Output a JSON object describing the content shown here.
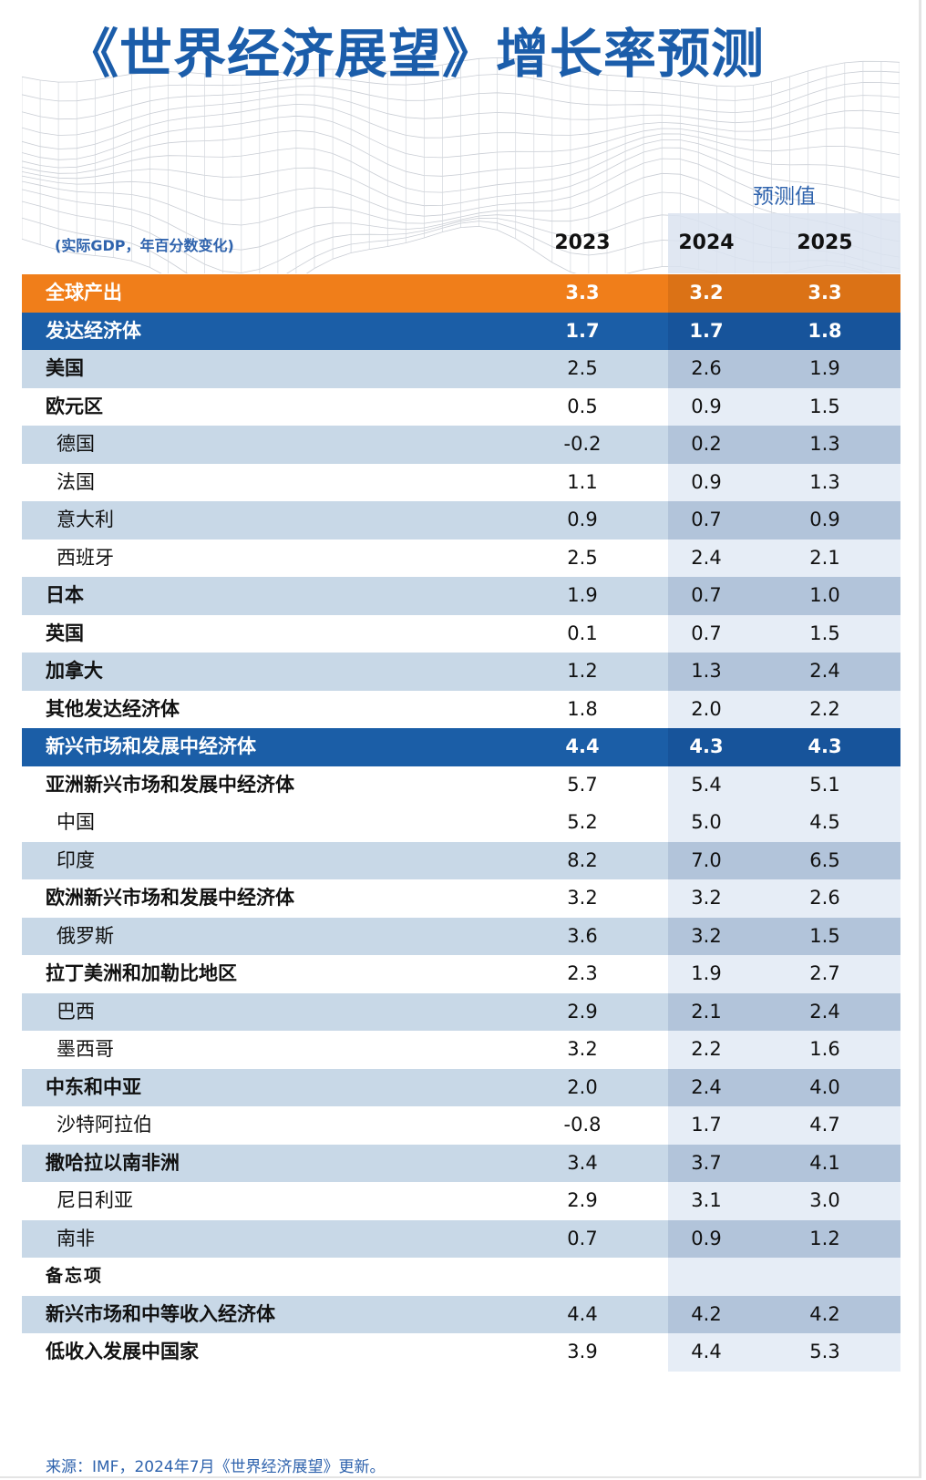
{
  "title": "《世界经济展望》增长率预测",
  "forecast_label": "预测值",
  "units_note": "(实际GDP，年百分数变化)",
  "source": "来源：IMF，2024年7月《世界经济展望》更新。",
  "colors": {
    "title": "#1b5daa",
    "orange_row": "#f07e1a",
    "blue_row": "#1b5ea7",
    "shade_row": "#c8d8e7"
  },
  "chart_data": {
    "type": "table",
    "title": "《世界经济展望》增长率预测",
    "subtitle": "(实际GDP，年百分数变化)",
    "columns": [
      "2023",
      "2024",
      "2025"
    ],
    "forecast_columns": [
      "2024",
      "2025"
    ],
    "rows": [
      {
        "label": "全球产出",
        "values": [
          "3.3",
          "3.2",
          "3.3"
        ]
      },
      {
        "label": "发达经济体",
        "values": [
          "1.7",
          "1.7",
          "1.8"
        ]
      },
      {
        "label": "美国",
        "values": [
          "2.5",
          "2.6",
          "1.9"
        ]
      },
      {
        "label": "欧元区",
        "values": [
          "0.5",
          "0.9",
          "1.5"
        ]
      },
      {
        "label": "德国",
        "values": [
          "-0.2",
          "0.2",
          "1.3"
        ]
      },
      {
        "label": "法国",
        "values": [
          "1.1",
          "0.9",
          "1.3"
        ]
      },
      {
        "label": "意大利",
        "values": [
          "0.9",
          "0.7",
          "0.9"
        ]
      },
      {
        "label": "西班牙",
        "values": [
          "2.5",
          "2.4",
          "2.1"
        ]
      },
      {
        "label": "日本",
        "values": [
          "1.9",
          "0.7",
          "1.0"
        ]
      },
      {
        "label": "英国",
        "values": [
          "0.1",
          "0.7",
          "1.5"
        ]
      },
      {
        "label": "加拿大",
        "values": [
          "1.2",
          "1.3",
          "2.4"
        ]
      },
      {
        "label": "其他发达经济体",
        "values": [
          "1.8",
          "2.0",
          "2.2"
        ]
      },
      {
        "label": "新兴市场和发展中经济体",
        "values": [
          "4.4",
          "4.3",
          "4.3"
        ]
      },
      {
        "label": "亚洲新兴市场和发展中经济体",
        "values": [
          "5.7",
          "5.4",
          "5.1"
        ]
      },
      {
        "label": "中国",
        "values": [
          "5.2",
          "5.0",
          "4.5"
        ]
      },
      {
        "label": "印度",
        "values": [
          "8.2",
          "7.0",
          "6.5"
        ]
      },
      {
        "label": "欧洲新兴市场和发展中经济体",
        "values": [
          "3.2",
          "3.2",
          "2.6"
        ]
      },
      {
        "label": "俄罗斯",
        "values": [
          "3.6",
          "3.2",
          "1.5"
        ]
      },
      {
        "label": "拉丁美洲和加勒比地区",
        "values": [
          "2.3",
          "1.9",
          "2.7"
        ]
      },
      {
        "label": "巴西",
        "values": [
          "2.9",
          "2.1",
          "2.4"
        ]
      },
      {
        "label": "墨西哥",
        "values": [
          "3.2",
          "2.2",
          "1.6"
        ]
      },
      {
        "label": "中东和中亚",
        "values": [
          "2.0",
          "2.4",
          "4.0"
        ]
      },
      {
        "label": "沙特阿拉伯",
        "values": [
          "-0.8",
          "1.7",
          "4.7"
        ]
      },
      {
        "label": "撒哈拉以南非洲",
        "values": [
          "3.4",
          "3.7",
          "4.1"
        ]
      },
      {
        "label": "尼日利亚",
        "values": [
          "2.9",
          "3.1",
          "3.0"
        ]
      },
      {
        "label": "南非",
        "values": [
          "0.7",
          "0.9",
          "1.2"
        ]
      },
      {
        "label": "备忘项",
        "values": [
          "",
          "",
          ""
        ]
      },
      {
        "label": "新兴市场和中等收入经济体",
        "values": [
          "4.4",
          "4.2",
          "4.2"
        ]
      },
      {
        "label": "低收入发展中国家",
        "values": [
          "3.9",
          "4.4",
          "5.3"
        ]
      }
    ]
  }
}
